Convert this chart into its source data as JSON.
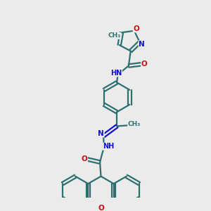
{
  "bg_color": "#ebebeb",
  "bond_color": "#2d7070",
  "bond_lw": 1.6,
  "n_color": "#1010cc",
  "o_color": "#cc1010",
  "c_color": "#2d7070",
  "figsize": [
    3.0,
    3.0
  ],
  "dpi": 100,
  "xlim": [
    0.0,
    1.0
  ],
  "ylim": [
    0.0,
    1.0
  ]
}
